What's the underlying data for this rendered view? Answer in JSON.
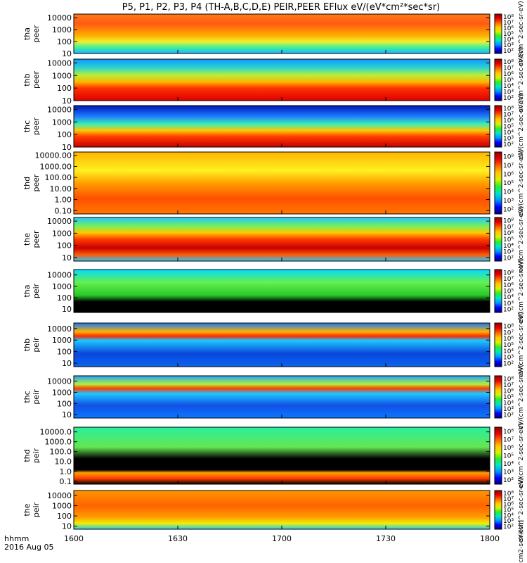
{
  "chart_data": {
    "type": "heatmap",
    "title": "P5, P1, P2, P3, P4 (TH-A,B,C,D,E) PEIR,PEER EFlux eV/(eV*cm²*sec*sr)",
    "x_ticks": [
      "1600",
      "1630",
      "1700",
      "1730",
      "1800"
    ],
    "x_range": [
      "16:00",
      "18:00"
    ],
    "x_caption_1": "hhmm",
    "x_caption_2": "2016 Aug 05",
    "colorbar_label": "eV/(cm^2-sec-sr-eV)",
    "colorbar_label_bottom": "[eV/(cm2-s-sr-eV)]",
    "colorbar_ticks": [
      "10²",
      "10³",
      "10⁴",
      "10⁵",
      "10⁶",
      "10⁷",
      "10⁸"
    ],
    "colorscale": [
      "#000082",
      "#0000ff",
      "#0096ff",
      "#00e6c8",
      "#28f028",
      "#dcf000",
      "#ffc800",
      "#ff6400",
      "#e60000",
      "#960000"
    ],
    "panels": [
      {
        "sc": "tha",
        "species": "peer",
        "label1": "tha",
        "label2": "peer",
        "yticks": [
          "10000",
          "1000",
          "100",
          "10"
        ],
        "ylog_range": [
          10,
          20000
        ]
      },
      {
        "sc": "thb",
        "species": "peer",
        "label1": "thb",
        "label2": "peer",
        "yticks": [
          "10000",
          "1000",
          "100",
          "10"
        ],
        "ylog_range": [
          10,
          20000
        ]
      },
      {
        "sc": "thc",
        "species": "peer",
        "label1": "thc",
        "label2": "peer",
        "yticks": [
          "10000",
          "1000",
          "100",
          "10"
        ],
        "ylog_range": [
          10,
          20000
        ]
      },
      {
        "sc": "thd",
        "species": "peer",
        "label1": "thd",
        "label2": "peer",
        "yticks": [
          "10000.00",
          "1000.00",
          "100.00",
          "10.00",
          "1.00",
          "0.10"
        ],
        "ylog_range": [
          0.05,
          20000
        ]
      },
      {
        "sc": "the",
        "species": "peer",
        "label1": "the",
        "label2": "peer",
        "yticks": [
          "10000",
          "1000",
          "100",
          "10"
        ],
        "ylog_range": [
          5,
          20000
        ]
      },
      {
        "sc": "tha",
        "species": "peir",
        "label1": "tha",
        "label2": "peir",
        "yticks": [
          "10000",
          "1000",
          "100",
          "10"
        ],
        "ylog_range": [
          5,
          30000
        ]
      },
      {
        "sc": "thb",
        "species": "peir",
        "label1": "thb",
        "label2": "peir",
        "yticks": [
          "10000",
          "1000",
          "100",
          "10"
        ],
        "ylog_range": [
          5,
          30000
        ]
      },
      {
        "sc": "thc",
        "species": "peir",
        "label1": "thc",
        "label2": "peir",
        "yticks": [
          "10000",
          "1000",
          "100",
          "10"
        ],
        "ylog_range": [
          5,
          30000
        ]
      },
      {
        "sc": "thd",
        "species": "peir",
        "label1": "thd",
        "label2": "peir",
        "yticks": [
          "10000.0",
          "1000.0",
          "100.0",
          "10.0",
          "1.0",
          "0.1"
        ],
        "ylog_range": [
          0.05,
          30000
        ]
      },
      {
        "sc": "the",
        "species": "peir",
        "label1": "the",
        "label2": "peir",
        "yticks": [
          "10000",
          "1000",
          "100",
          "10"
        ],
        "ylog_range": [
          5,
          30000
        ]
      }
    ]
  }
}
